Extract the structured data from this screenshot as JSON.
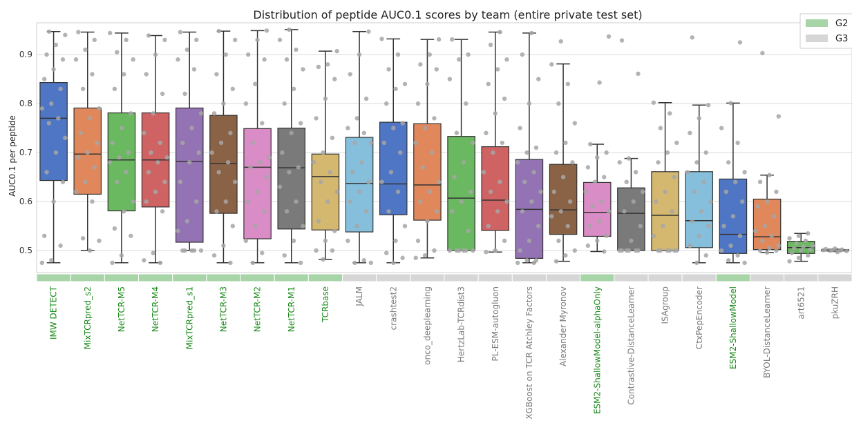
{
  "chart_data": {
    "type": "box",
    "title": "Distribution of peptide AUC0.1 scores by team (entire private test set)",
    "xlabel": "",
    "ylabel": "AUC0.1 per peptide",
    "ylim": [
      0.455,
      0.965
    ],
    "yticks": [
      0.5,
      0.6,
      0.7,
      0.8,
      0.9
    ],
    "grid": true,
    "legend_position": "top-right",
    "legend": [
      {
        "label": "G2",
        "color": "#a8d5a8"
      },
      {
        "label": "G3",
        "color": "#d6d6d6"
      }
    ],
    "group_label_colors": {
      "G2": "#1a8a1a",
      "G3": "#7a7a7a"
    },
    "series": [
      {
        "team": "IMW DETECT",
        "group": "G2",
        "color": "#4f76c4",
        "whislo": 0.475,
        "q1": 0.643,
        "med": 0.77,
        "q3": 0.843,
        "whishi": 0.947,
        "points": [
          0.475,
          0.48,
          0.51,
          0.53,
          0.6,
          0.64,
          0.66,
          0.7,
          0.73,
          0.76,
          0.77,
          0.79,
          0.8,
          0.83,
          0.85,
          0.87,
          0.89,
          0.9,
          0.92,
          0.94,
          0.947
        ]
      },
      {
        "team": "MixTCRpred_s2",
        "group": "G2",
        "color": "#e0885b",
        "whislo": 0.5,
        "q1": 0.615,
        "med": 0.697,
        "q3": 0.791,
        "whishi": 0.946,
        "points": [
          0.5,
          0.52,
          0.525,
          0.6,
          0.62,
          0.64,
          0.67,
          0.69,
          0.7,
          0.72,
          0.74,
          0.77,
          0.79,
          0.83,
          0.86,
          0.89,
          0.91,
          0.93,
          0.946
        ]
      },
      {
        "team": "NetTCR-M5",
        "group": "G2",
        "color": "#6ab860",
        "whislo": 0.475,
        "q1": 0.581,
        "med": 0.685,
        "q3": 0.781,
        "whishi": 0.944,
        "points": [
          0.475,
          0.49,
          0.53,
          0.545,
          0.58,
          0.6,
          0.64,
          0.66,
          0.68,
          0.69,
          0.7,
          0.72,
          0.75,
          0.78,
          0.83,
          0.86,
          0.89,
          0.905,
          0.93,
          0.944
        ]
      },
      {
        "team": "NetTCR-M4",
        "group": "G2",
        "color": "#cf6363",
        "whislo": 0.475,
        "q1": 0.589,
        "med": 0.685,
        "q3": 0.781,
        "whishi": 0.939,
        "points": [
          0.475,
          0.48,
          0.495,
          0.58,
          0.6,
          0.62,
          0.64,
          0.66,
          0.68,
          0.69,
          0.7,
          0.72,
          0.74,
          0.78,
          0.82,
          0.86,
          0.9,
          0.93,
          0.939
        ]
      },
      {
        "team": "MixTCRpred_s1",
        "group": "G2",
        "color": "#9373b3",
        "whislo": 0.5,
        "q1": 0.517,
        "med": 0.682,
        "q3": 0.791,
        "whishi": 0.946,
        "points": [
          0.5,
          0.5,
          0.5,
          0.5,
          0.5,
          0.54,
          0.56,
          0.6,
          0.64,
          0.68,
          0.7,
          0.72,
          0.75,
          0.78,
          0.82,
          0.87,
          0.89,
          0.91,
          0.93,
          0.946
        ]
      },
      {
        "team": "NetTCR-M3",
        "group": "G2",
        "color": "#8a6245",
        "whislo": 0.475,
        "q1": 0.576,
        "med": 0.678,
        "q3": 0.776,
        "whishi": 0.948,
        "points": [
          0.475,
          0.49,
          0.51,
          0.55,
          0.58,
          0.6,
          0.64,
          0.66,
          0.68,
          0.7,
          0.72,
          0.74,
          0.78,
          0.8,
          0.83,
          0.86,
          0.9,
          0.93,
          0.948
        ]
      },
      {
        "team": "NetTCR-M2",
        "group": "G2",
        "color": "#d98cc6",
        "whislo": 0.475,
        "q1": 0.524,
        "med": 0.67,
        "q3": 0.749,
        "whishi": 0.949,
        "points": [
          0.475,
          0.495,
          0.52,
          0.55,
          0.58,
          0.6,
          0.62,
          0.65,
          0.67,
          0.68,
          0.69,
          0.72,
          0.76,
          0.8,
          0.84,
          0.89,
          0.9,
          0.93,
          0.949
        ]
      },
      {
        "team": "NetTCR-M1",
        "group": "G2",
        "color": "#7a7a7a",
        "whislo": 0.475,
        "q1": 0.544,
        "med": 0.669,
        "q3": 0.75,
        "whishi": 0.951,
        "points": [
          0.475,
          0.49,
          0.52,
          0.55,
          0.58,
          0.6,
          0.63,
          0.66,
          0.67,
          0.7,
          0.74,
          0.76,
          0.8,
          0.83,
          0.87,
          0.89,
          0.91,
          0.93,
          0.951
        ]
      },
      {
        "team": "TCRbase",
        "group": "G2",
        "color": "#d4b86f",
        "whislo": 0.482,
        "q1": 0.542,
        "med": 0.651,
        "q3": 0.697,
        "whishi": 0.907,
        "points": [
          0.482,
          0.5,
          0.5,
          0.52,
          0.54,
          0.56,
          0.6,
          0.62,
          0.64,
          0.66,
          0.68,
          0.7,
          0.73,
          0.77,
          0.81,
          0.85,
          0.875,
          0.88,
          0.907
        ]
      },
      {
        "team": "JALM",
        "group": "G3",
        "color": "#86bfdb",
        "whislo": 0.475,
        "q1": 0.538,
        "med": 0.637,
        "q3": 0.731,
        "whishi": 0.947,
        "points": [
          0.475,
          0.475,
          0.48,
          0.52,
          0.55,
          0.58,
          0.6,
          0.62,
          0.64,
          0.66,
          0.68,
          0.72,
          0.72,
          0.74,
          0.75,
          0.77,
          0.81,
          0.86,
          0.9,
          0.947
        ]
      },
      {
        "team": "crashtest2",
        "group": "G3",
        "color": "#4f76c4",
        "whislo": 0.475,
        "q1": 0.573,
        "med": 0.636,
        "q3": 0.762,
        "whishi": 0.932,
        "points": [
          0.475,
          0.485,
          0.495,
          0.52,
          0.55,
          0.58,
          0.62,
          0.64,
          0.66,
          0.7,
          0.72,
          0.75,
          0.76,
          0.8,
          0.83,
          0.84,
          0.87,
          0.9,
          0.932
        ]
      },
      {
        "team": "onco_deeplearning",
        "group": "G3",
        "color": "#e0885b",
        "whislo": 0.485,
        "q1": 0.562,
        "med": 0.634,
        "q3": 0.759,
        "whishi": 0.931,
        "points": [
          0.485,
          0.49,
          0.5,
          0.52,
          0.56,
          0.58,
          0.6,
          0.62,
          0.64,
          0.67,
          0.7,
          0.72,
          0.75,
          0.77,
          0.8,
          0.84,
          0.87,
          0.88,
          0.9,
          0.931
        ]
      },
      {
        "team": "HertzLab-TCRdist3",
        "group": "G3",
        "color": "#6ab860",
        "whislo": 0.5,
        "q1": 0.5,
        "med": 0.607,
        "q3": 0.733,
        "whishi": 0.931,
        "points": [
          0.5,
          0.5,
          0.5,
          0.5,
          0.5,
          0.5,
          0.54,
          0.58,
          0.6,
          0.62,
          0.65,
          0.68,
          0.72,
          0.74,
          0.8,
          0.85,
          0.89,
          0.9,
          0.931
        ]
      },
      {
        "team": "PL-ESM-autogluon",
        "group": "G3",
        "color": "#cf6363",
        "whislo": 0.497,
        "q1": 0.541,
        "med": 0.603,
        "q3": 0.712,
        "whishi": 0.946,
        "points": [
          0.497,
          0.5,
          0.52,
          0.55,
          0.58,
          0.6,
          0.62,
          0.64,
          0.66,
          0.7,
          0.72,
          0.74,
          0.78,
          0.81,
          0.84,
          0.87,
          0.89,
          0.92,
          0.946
        ]
      },
      {
        "team": "XGBoost on TCR Atchley Factors",
        "group": "G3",
        "color": "#9373b3",
        "whislo": 0.475,
        "q1": 0.484,
        "med": 0.584,
        "q3": 0.686,
        "whishi": 0.944,
        "points": [
          0.475,
          0.475,
          0.48,
          0.48,
          0.5,
          0.52,
          0.55,
          0.58,
          0.6,
          0.62,
          0.64,
          0.66,
          0.68,
          0.7,
          0.71,
          0.75,
          0.8,
          0.85,
          0.9,
          0.944
        ]
      },
      {
        "team": "Alexander Myronov",
        "group": "G3",
        "color": "#8a6245",
        "whislo": 0.478,
        "q1": 0.533,
        "med": 0.583,
        "q3": 0.676,
        "whishi": 0.881,
        "points": [
          0.478,
          0.49,
          0.5,
          0.52,
          0.55,
          0.57,
          0.58,
          0.6,
          0.62,
          0.65,
          0.68,
          0.7,
          0.72,
          0.76,
          0.8,
          0.84,
          0.88,
          0.927
        ]
      },
      {
        "team": "ESM2-ShallowModel-alphaOnly",
        "group": "G2",
        "color": "#d98cc6",
        "whislo": 0.498,
        "q1": 0.529,
        "med": 0.578,
        "q3": 0.639,
        "whishi": 0.717,
        "points": [
          0.498,
          0.51,
          0.52,
          0.53,
          0.55,
          0.56,
          0.58,
          0.59,
          0.6,
          0.62,
          0.64,
          0.65,
          0.67,
          0.69,
          0.7,
          0.717,
          0.843,
          0.937
        ]
      },
      {
        "team": "Contrastive-DistanceLearner",
        "group": "G3",
        "color": "#7a7a7a",
        "whislo": 0.5,
        "q1": 0.5,
        "med": 0.576,
        "q3": 0.628,
        "whishi": 0.688,
        "points": [
          0.5,
          0.5,
          0.5,
          0.5,
          0.5,
          0.5,
          0.52,
          0.55,
          0.58,
          0.6,
          0.62,
          0.64,
          0.66,
          0.68,
          0.688,
          0.861,
          0.929
        ]
      },
      {
        "team": "ISAgroup",
        "group": "G3",
        "color": "#d4b86f",
        "whislo": 0.5,
        "q1": 0.5,
        "med": 0.572,
        "q3": 0.661,
        "whishi": 0.802,
        "points": [
          0.5,
          0.5,
          0.5,
          0.5,
          0.5,
          0.5,
          0.53,
          0.55,
          0.58,
          0.6,
          0.62,
          0.65,
          0.68,
          0.7,
          0.72,
          0.75,
          0.78,
          0.802
        ]
      },
      {
        "team": "CtxPepEncoder",
        "group": "G3",
        "color": "#86bfdb",
        "whislo": 0.475,
        "q1": 0.506,
        "med": 0.561,
        "q3": 0.661,
        "whishi": 0.797,
        "points": [
          0.475,
          0.49,
          0.51,
          0.53,
          0.55,
          0.56,
          0.58,
          0.6,
          0.62,
          0.64,
          0.66,
          0.68,
          0.7,
          0.74,
          0.77,
          0.797,
          0.935
        ]
      },
      {
        "team": "ESM2-ShallowModel",
        "group": "G2",
        "color": "#4f76c4",
        "whislo": 0.475,
        "q1": 0.494,
        "med": 0.533,
        "q3": 0.646,
        "whishi": 0.801,
        "points": [
          0.475,
          0.48,
          0.49,
          0.5,
          0.51,
          0.53,
          0.55,
          0.57,
          0.6,
          0.62,
          0.64,
          0.66,
          0.68,
          0.72,
          0.75,
          0.801,
          0.925
        ]
      },
      {
        "team": "BYOL-DistanceLearner",
        "group": "G3",
        "color": "#e0885b",
        "whislo": 0.496,
        "q1": 0.502,
        "med": 0.528,
        "q3": 0.605,
        "whishi": 0.654,
        "points": [
          0.496,
          0.5,
          0.5,
          0.505,
          0.51,
          0.52,
          0.53,
          0.54,
          0.55,
          0.57,
          0.59,
          0.6,
          0.62,
          0.64,
          0.654,
          0.774,
          0.903
        ]
      },
      {
        "team": "art6521",
        "group": "G3",
        "color": "#6ab860",
        "whislo": 0.478,
        "q1": 0.494,
        "med": 0.506,
        "q3": 0.519,
        "whishi": 0.535,
        "points": [
          0.478,
          0.485,
          0.49,
          0.495,
          0.5,
          0.502,
          0.505,
          0.508,
          0.51,
          0.515,
          0.52,
          0.525,
          0.53,
          0.535
        ]
      },
      {
        "team": "pkuZRH",
        "group": "G3",
        "color": "#cf6363",
        "whislo": 0.498,
        "q1": 0.499,
        "med": 0.501,
        "q3": 0.502,
        "whishi": 0.503,
        "points": [
          0.497,
          0.499,
          0.5,
          0.5,
          0.501,
          0.501,
          0.502,
          0.503,
          0.504
        ]
      }
    ]
  }
}
